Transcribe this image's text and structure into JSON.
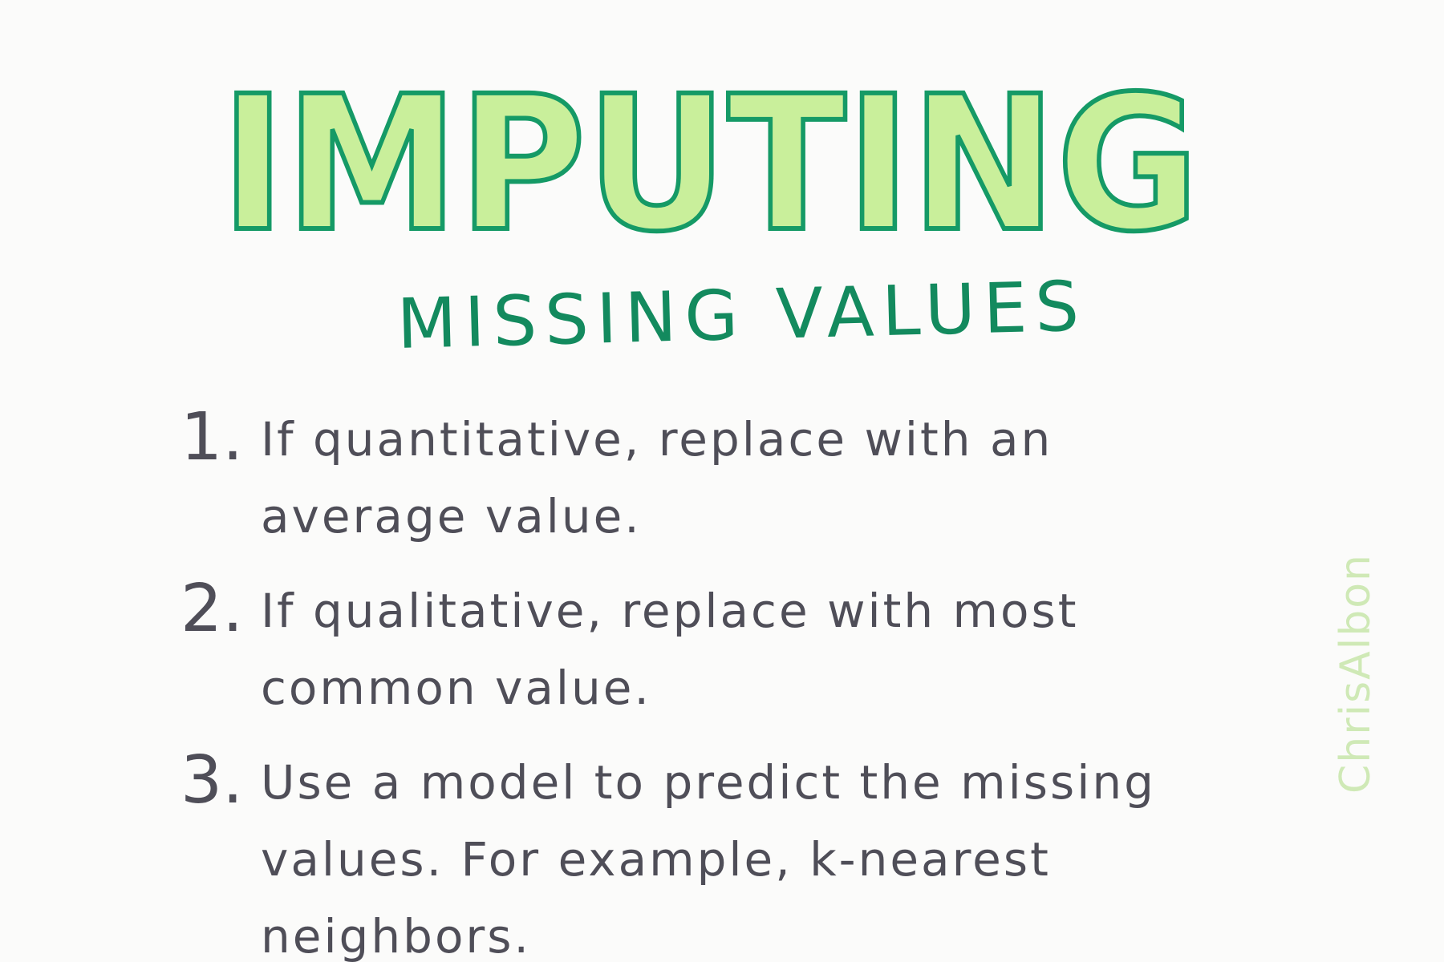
{
  "title": "IMPUTING",
  "subtitle": "MISSING VALUES",
  "items": [
    {
      "number": "1.",
      "text": "If quantitative, replace with an average value."
    },
    {
      "number": "2.",
      "text": "If qualitative, replace with most common value."
    },
    {
      "number": "3.",
      "text": "Use a model to predict the missing values. For example, k-nearest neighbors."
    }
  ],
  "signature": "ChrisAlbon",
  "colors": {
    "title_fill": "#c9ef9b",
    "title_stroke": "#159a66",
    "subtitle": "#138a5e",
    "body_text": "#4f4e58",
    "signature": "#cfe9b6",
    "background": "#fbfbfa"
  }
}
